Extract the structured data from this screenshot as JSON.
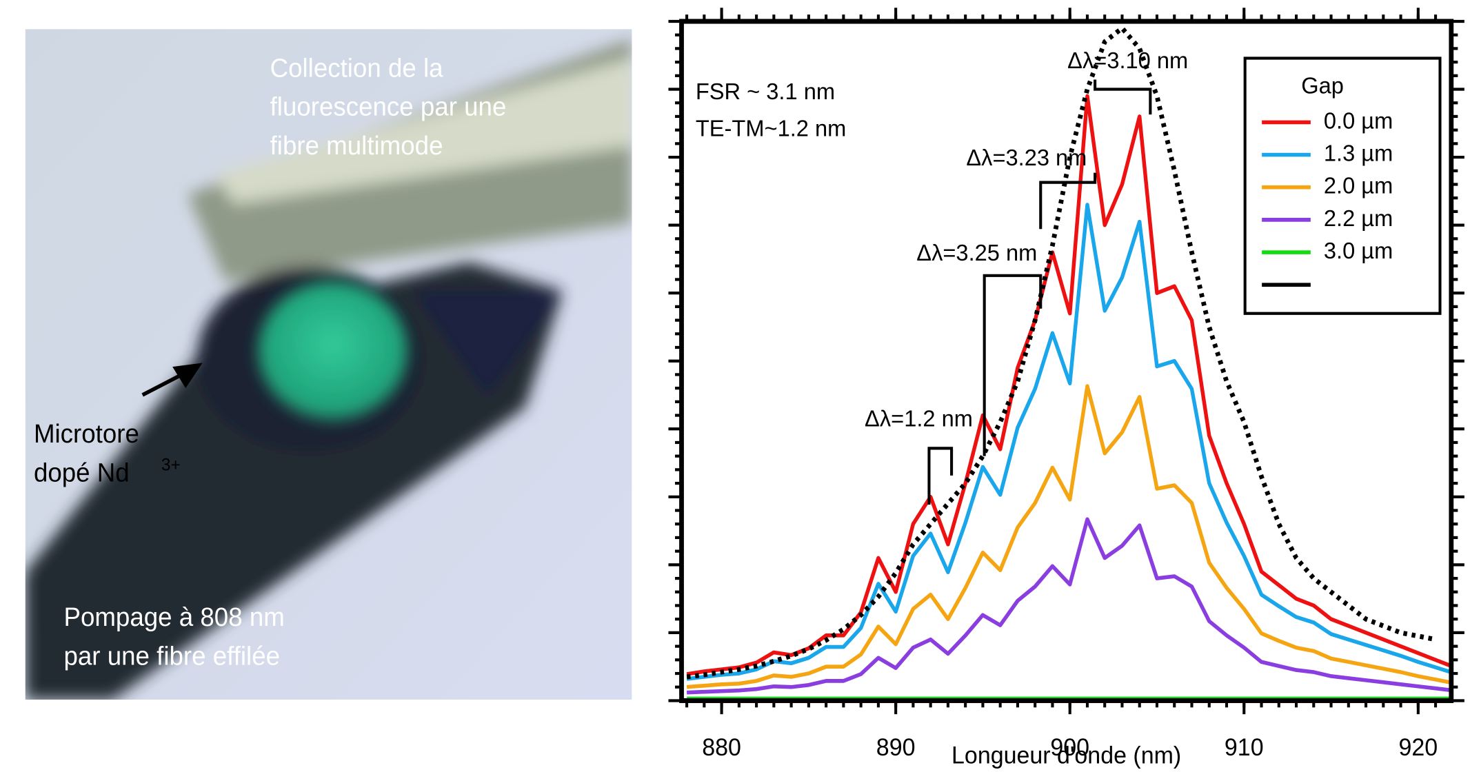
{
  "photo": {
    "top_label": [
      "Collection de la",
      "fluorescence par une",
      "fibre multimode"
    ],
    "side_label": {
      "lines": [
        "Microtore",
        "dopé Nd"
      ],
      "superscript": "3+"
    },
    "bottom_label": [
      "Pompage à 808 nm",
      "par une fibre effilée"
    ]
  },
  "chart_data": {
    "type": "line",
    "xlabel": "Longueur d'onde (nm)",
    "annotations": [
      "FSR ~ 3.1 nm",
      "TE-TM~1.2 nm",
      "Δλ=3.10 nm",
      "Δλ=3.23 nm",
      "Δλ=3.25 nm",
      "Δλ=1.2 nm"
    ],
    "legend_title": "Gap",
    "legend": "upper right",
    "xlim": [
      877.7,
      921.9
    ],
    "xticks": [
      880,
      890,
      900,
      910,
      920
    ],
    "xminorticks": [
      878,
      879,
      880,
      881,
      882,
      883,
      884,
      885,
      886,
      887,
      888,
      889,
      890,
      891,
      892,
      893,
      894,
      895,
      896,
      897,
      898,
      899,
      900,
      901,
      902,
      903,
      904,
      905,
      906,
      907,
      908,
      909,
      910,
      911,
      912,
      913,
      914,
      915,
      916,
      917,
      918,
      919,
      920,
      921
    ],
    "ylim": [
      0,
      100
    ],
    "yticks": [
      0,
      10,
      20,
      30,
      40,
      50,
      60,
      70,
      80,
      90,
      100
    ],
    "yminorticks": [
      2,
      4,
      6,
      8,
      12,
      14,
      16,
      18,
      22,
      24,
      26,
      28,
      32,
      34,
      36,
      38,
      42,
      44,
      46,
      48,
      52,
      54,
      56,
      58,
      62,
      64,
      66,
      68,
      72,
      74,
      76,
      78,
      82,
      84,
      86,
      88,
      92,
      94,
      96,
      98
    ],
    "x": [
      878,
      879,
      880,
      881,
      882,
      883,
      884,
      885,
      886,
      887,
      888,
      889,
      890,
      891,
      892,
      893,
      894,
      895,
      896,
      897,
      898,
      899,
      900,
      901,
      902,
      903,
      904,
      905,
      906,
      907,
      908,
      909,
      910,
      911,
      912,
      913,
      914,
      915,
      916,
      917,
      918,
      919,
      920,
      921,
      922
    ],
    "series": [
      {
        "name": "0.0 µm",
        "color": "#ee1111",
        "values": [
          3.9,
          4.3,
          4.6,
          4.9,
          5.6,
          7.1,
          6.7,
          7.7,
          9.6,
          9.6,
          13,
          21,
          16,
          26,
          30,
          23,
          32,
          42,
          37,
          49,
          56,
          66,
          57,
          89,
          70,
          76,
          86,
          60,
          61,
          56,
          39,
          32,
          26,
          19,
          17,
          15,
          14,
          12,
          11,
          10,
          9,
          8,
          7,
          6,
          5
        ]
      },
      {
        "name": "1.3 µm",
        "color": "#1aa6ea",
        "values": [
          3.2,
          3.5,
          3.8,
          4.0,
          4.6,
          5.8,
          5.5,
          6.3,
          7.9,
          7.9,
          10.7,
          17.2,
          13.1,
          21.3,
          24.6,
          18.9,
          26.2,
          34.4,
          30.3,
          40.2,
          45.9,
          54.1,
          46.7,
          73,
          57.4,
          62.3,
          70.5,
          49.2,
          50,
          45.9,
          32,
          26.2,
          21.3,
          15.6,
          13.9,
          12.3,
          11.5,
          9.8,
          9,
          8.2,
          7.4,
          6.6,
          5.7,
          4.9,
          4.1
        ]
      },
      {
        "name": "2.0 µm",
        "color": "#f5a511",
        "values": [
          2,
          2.2,
          2.4,
          2.5,
          2.9,
          3.7,
          3.5,
          4,
          5,
          5,
          6.8,
          10.9,
          8.3,
          13.5,
          15.6,
          12,
          16.6,
          21.8,
          19.2,
          25.5,
          29.1,
          34.3,
          29.6,
          46.3,
          36.4,
          39.5,
          44.7,
          31.2,
          31.7,
          29.1,
          20.3,
          16.6,
          13.5,
          9.9,
          8.8,
          7.8,
          7.3,
          6.2,
          5.7,
          5.2,
          4.7,
          4.2,
          3.6,
          3.1,
          2.6
        ]
      },
      {
        "name": "2.2 µm",
        "color": "#8a3ee0",
        "values": [
          1.2,
          1.3,
          1.4,
          1.5,
          1.7,
          2.1,
          2,
          2.3,
          2.9,
          2.9,
          3.9,
          6.3,
          4.8,
          7.8,
          9,
          6.9,
          9.6,
          12.6,
          11.1,
          14.7,
          16.8,
          19.8,
          17.1,
          26.7,
          21,
          22.8,
          25.8,
          18,
          18.3,
          16.8,
          11.7,
          9.6,
          7.8,
          5.7,
          5.1,
          4.5,
          4.2,
          3.6,
          3.3,
          3,
          2.7,
          2.4,
          2.1,
          1.8,
          1.5
        ]
      },
      {
        "name": "3.0 µm",
        "color": "#11dd11",
        "values": [
          0.3,
          0.3,
          0.3,
          0.3,
          0.3,
          0.3,
          0.3,
          0.3,
          0.3,
          0.3,
          0.3,
          0.3,
          0.3,
          0.3,
          0.3,
          0.3,
          0.3,
          0.3,
          0.3,
          0.3,
          0.3,
          0.3,
          0.3,
          0.3,
          0.3,
          0.3,
          0.3,
          0.3,
          0.3,
          0.3,
          0.3,
          0.3,
          0.3,
          0.3,
          0.3,
          0.3,
          0.3,
          0.3,
          0.3,
          0.3,
          0.3,
          0.3,
          0.3,
          0.3,
          0.3
        ]
      },
      {
        "color": "#000000",
        "dashed": true,
        "values": [
          3.5,
          3.8,
          4.2,
          4.6,
          5.1,
          5.8,
          6.6,
          7.6,
          8.9,
          10.5,
          12.6,
          15.3,
          18.8,
          23,
          26,
          29,
          32,
          36,
          41,
          47,
          56,
          67,
          80,
          90,
          97,
          99,
          96,
          89,
          78,
          66,
          55,
          47,
          41,
          33,
          26,
          21,
          18,
          16,
          14,
          12,
          11,
          10,
          9.5,
          9,
          null
        ]
      }
    ]
  }
}
